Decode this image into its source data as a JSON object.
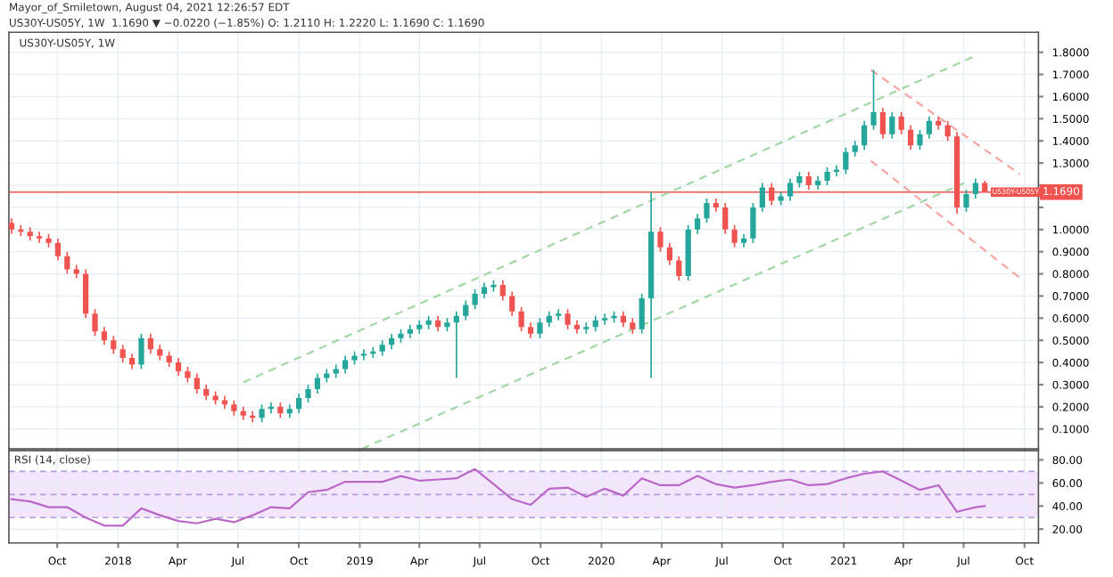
{
  "chart_data": [
    {
      "type": "candlestick",
      "title": "Mayor_of_Smiletown, August 04, 2021 12:26:57 EDT",
      "subtitle": "US30Y-US05Y, 1W  1.1690 ▼ −0.0220 (−1.85%) O: 1.2110 H: 1.2220 L: 1.1690 C: 1.1690",
      "annotations": [
        "US30Y-US05Y, 1W",
        {
          "text": "US30Y-US05Y",
          "x": "2021-08-02",
          "y": 1.169
        }
      ],
      "x": [
        "2017-07-24",
        "2017-08-07",
        "2017-08-21",
        "2017-09-04",
        "2017-09-18",
        "2017-10-02",
        "2017-10-16",
        "2017-10-30",
        "2017-11-13",
        "2017-11-27",
        "2017-12-11",
        "2017-12-25",
        "2018-01-08",
        "2018-01-22",
        "2018-02-05",
        "2018-02-19",
        "2018-03-05",
        "2018-03-19",
        "2018-04-02",
        "2018-04-16",
        "2018-04-30",
        "2018-05-14",
        "2018-05-28",
        "2018-06-11",
        "2018-06-25",
        "2018-07-09",
        "2018-07-23",
        "2018-08-06",
        "2018-08-20",
        "2018-09-03",
        "2018-09-17",
        "2018-10-01",
        "2018-10-15",
        "2018-10-29",
        "2018-11-12",
        "2018-11-26",
        "2018-12-10",
        "2018-12-24",
        "2019-01-07",
        "2019-01-21",
        "2019-02-04",
        "2019-02-18",
        "2019-03-04",
        "2019-03-18",
        "2019-04-01",
        "2019-04-15",
        "2019-04-29",
        "2019-05-13",
        "2019-05-27",
        "2019-06-10",
        "2019-06-24",
        "2019-07-08",
        "2019-07-22",
        "2019-08-05",
        "2019-08-19",
        "2019-09-02",
        "2019-09-16",
        "2019-09-30",
        "2019-10-14",
        "2019-10-28",
        "2019-11-11",
        "2019-11-25",
        "2019-12-09",
        "2019-12-23",
        "2020-01-06",
        "2020-01-20",
        "2020-02-03",
        "2020-02-17",
        "2020-03-02",
        "2020-03-16",
        "2020-03-30",
        "2020-04-13",
        "2020-04-27",
        "2020-05-11",
        "2020-05-25",
        "2020-06-08",
        "2020-06-22",
        "2020-07-06",
        "2020-07-20",
        "2020-08-03",
        "2020-08-17",
        "2020-08-31",
        "2020-09-14",
        "2020-09-28",
        "2020-10-12",
        "2020-10-26",
        "2020-11-09",
        "2020-11-23",
        "2020-12-07",
        "2020-12-21",
        "2021-01-04",
        "2021-01-18",
        "2021-02-01",
        "2021-02-15",
        "2021-03-01",
        "2021-03-15",
        "2021-03-29",
        "2021-04-12",
        "2021-04-26",
        "2021-05-10",
        "2021-05-24",
        "2021-06-07",
        "2021-06-21",
        "2021-07-05",
        "2021-07-19",
        "2021-08-02"
      ],
      "ohlc": [
        [
          1.03,
          1.05,
          0.98,
          1.0
        ],
        [
          1.0,
          1.02,
          0.97,
          0.99
        ],
        [
          0.99,
          1.01,
          0.95,
          0.97
        ],
        [
          0.97,
          0.99,
          0.94,
          0.96
        ],
        [
          0.96,
          0.98,
          0.92,
          0.94
        ],
        [
          0.94,
          0.96,
          0.86,
          0.88
        ],
        [
          0.88,
          0.9,
          0.8,
          0.82
        ],
        [
          0.82,
          0.84,
          0.78,
          0.8
        ],
        [
          0.8,
          0.82,
          0.6,
          0.62
        ],
        [
          0.62,
          0.64,
          0.52,
          0.54
        ],
        [
          0.54,
          0.56,
          0.48,
          0.5
        ],
        [
          0.5,
          0.52,
          0.44,
          0.46
        ],
        [
          0.46,
          0.48,
          0.4,
          0.42
        ],
        [
          0.42,
          0.44,
          0.37,
          0.39
        ],
        [
          0.39,
          0.53,
          0.37,
          0.51
        ],
        [
          0.51,
          0.53,
          0.44,
          0.46
        ],
        [
          0.46,
          0.48,
          0.41,
          0.43
        ],
        [
          0.43,
          0.45,
          0.38,
          0.4
        ],
        [
          0.4,
          0.42,
          0.34,
          0.36
        ],
        [
          0.36,
          0.38,
          0.31,
          0.33
        ],
        [
          0.33,
          0.35,
          0.26,
          0.28
        ],
        [
          0.28,
          0.3,
          0.23,
          0.25
        ],
        [
          0.25,
          0.27,
          0.21,
          0.23
        ],
        [
          0.23,
          0.25,
          0.19,
          0.21
        ],
        [
          0.21,
          0.23,
          0.16,
          0.18
        ],
        [
          0.18,
          0.2,
          0.14,
          0.16
        ],
        [
          0.16,
          0.18,
          0.13,
          0.15
        ],
        [
          0.15,
          0.21,
          0.13,
          0.19
        ],
        [
          0.19,
          0.22,
          0.17,
          0.2
        ],
        [
          0.2,
          0.22,
          0.15,
          0.17
        ],
        [
          0.17,
          0.21,
          0.15,
          0.19
        ],
        [
          0.19,
          0.26,
          0.17,
          0.24
        ],
        [
          0.24,
          0.3,
          0.22,
          0.28
        ],
        [
          0.28,
          0.35,
          0.26,
          0.33
        ],
        [
          0.33,
          0.37,
          0.31,
          0.35
        ],
        [
          0.35,
          0.39,
          0.33,
          0.37
        ],
        [
          0.37,
          0.43,
          0.35,
          0.41
        ],
        [
          0.41,
          0.45,
          0.39,
          0.43
        ],
        [
          0.43,
          0.46,
          0.41,
          0.44
        ],
        [
          0.44,
          0.47,
          0.42,
          0.45
        ],
        [
          0.45,
          0.5,
          0.43,
          0.48
        ],
        [
          0.48,
          0.53,
          0.46,
          0.51
        ],
        [
          0.51,
          0.55,
          0.49,
          0.53
        ],
        [
          0.53,
          0.57,
          0.51,
          0.55
        ],
        [
          0.55,
          0.59,
          0.53,
          0.57
        ],
        [
          0.57,
          0.61,
          0.55,
          0.59
        ],
        [
          0.59,
          0.61,
          0.54,
          0.56
        ],
        [
          0.56,
          0.6,
          0.54,
          0.58
        ],
        [
          0.58,
          0.63,
          0.33,
          0.61
        ],
        [
          0.61,
          0.68,
          0.59,
          0.66
        ],
        [
          0.66,
          0.73,
          0.64,
          0.71
        ],
        [
          0.71,
          0.76,
          0.69,
          0.74
        ],
        [
          0.74,
          0.77,
          0.72,
          0.75
        ],
        [
          0.75,
          0.77,
          0.68,
          0.7
        ],
        [
          0.7,
          0.72,
          0.61,
          0.63
        ],
        [
          0.63,
          0.65,
          0.54,
          0.56
        ],
        [
          0.56,
          0.58,
          0.51,
          0.53
        ],
        [
          0.53,
          0.6,
          0.51,
          0.58
        ],
        [
          0.58,
          0.63,
          0.56,
          0.61
        ],
        [
          0.61,
          0.64,
          0.59,
          0.62
        ],
        [
          0.62,
          0.64,
          0.55,
          0.57
        ],
        [
          0.57,
          0.59,
          0.53,
          0.55
        ],
        [
          0.55,
          0.58,
          0.53,
          0.56
        ],
        [
          0.56,
          0.61,
          0.54,
          0.59
        ],
        [
          0.59,
          0.62,
          0.57,
          0.6
        ],
        [
          0.6,
          0.63,
          0.58,
          0.61
        ],
        [
          0.61,
          0.63,
          0.56,
          0.58
        ],
        [
          0.58,
          0.6,
          0.53,
          0.55
        ],
        [
          0.55,
          0.71,
          0.53,
          0.69
        ],
        [
          0.69,
          1.17,
          0.33,
          0.99
        ],
        [
          0.99,
          1.01,
          0.9,
          0.92
        ],
        [
          0.92,
          0.94,
          0.84,
          0.86
        ],
        [
          0.86,
          0.88,
          0.77,
          0.79
        ],
        [
          0.79,
          1.02,
          0.77,
          1.0
        ],
        [
          1.0,
          1.07,
          0.98,
          1.05
        ],
        [
          1.05,
          1.14,
          1.03,
          1.12
        ],
        [
          1.12,
          1.14,
          1.08,
          1.1
        ],
        [
          1.1,
          1.12,
          0.98,
          1.0
        ],
        [
          1.0,
          1.02,
          0.92,
          0.94
        ],
        [
          0.94,
          0.98,
          0.92,
          0.96
        ],
        [
          0.96,
          1.12,
          0.94,
          1.1
        ],
        [
          1.1,
          1.21,
          1.08,
          1.19
        ],
        [
          1.19,
          1.21,
          1.11,
          1.13
        ],
        [
          1.13,
          1.17,
          1.11,
          1.15
        ],
        [
          1.15,
          1.23,
          1.13,
          1.21
        ],
        [
          1.21,
          1.26,
          1.19,
          1.24
        ],
        [
          1.24,
          1.26,
          1.18,
          1.2
        ],
        [
          1.2,
          1.24,
          1.18,
          1.22
        ],
        [
          1.22,
          1.28,
          1.2,
          1.26
        ],
        [
          1.26,
          1.29,
          1.24,
          1.27
        ],
        [
          1.27,
          1.37,
          1.25,
          1.35
        ],
        [
          1.35,
          1.4,
          1.33,
          1.38
        ],
        [
          1.38,
          1.49,
          1.36,
          1.47
        ],
        [
          1.47,
          1.72,
          1.45,
          1.53
        ],
        [
          1.53,
          1.55,
          1.41,
          1.43
        ],
        [
          1.43,
          1.53,
          1.41,
          1.51
        ],
        [
          1.51,
          1.53,
          1.43,
          1.45
        ],
        [
          1.45,
          1.47,
          1.36,
          1.38
        ],
        [
          1.38,
          1.45,
          1.36,
          1.43
        ],
        [
          1.43,
          1.51,
          1.41,
          1.49
        ],
        [
          1.49,
          1.51,
          1.45,
          1.47
        ],
        [
          1.47,
          1.49,
          1.4,
          1.42
        ],
        [
          1.42,
          1.44,
          1.07,
          1.1
        ],
        [
          1.1,
          1.18,
          1.08,
          1.16
        ],
        [
          1.16,
          1.23,
          1.14,
          1.21
        ],
        [
          1.21,
          1.22,
          1.17,
          1.17
        ]
      ],
      "colors": [
        "#ef5350",
        "#ef5350",
        "#ef5350",
        "#ef5350",
        "#ef5350",
        "#ef5350",
        "#ef5350",
        "#ef5350",
        "#ef5350",
        "#ef5350",
        "#ef5350",
        "#ef5350",
        "#ef5350",
        "#ef5350",
        "#26a69a",
        "#ef5350",
        "#ef5350",
        "#ef5350",
        "#ef5350",
        "#ef5350",
        "#ef5350",
        "#ef5350",
        "#ef5350",
        "#ef5350",
        "#ef5350",
        "#ef5350",
        "#ef5350",
        "#26a69a",
        "#26a69a",
        "#ef5350",
        "#26a69a",
        "#26a69a",
        "#26a69a",
        "#26a69a",
        "#26a69a",
        "#26a69a",
        "#26a69a",
        "#26a69a",
        "#26a69a",
        "#26a69a",
        "#26a69a",
        "#26a69a",
        "#26a69a",
        "#26a69a",
        "#26a69a",
        "#26a69a",
        "#ef5350",
        "#26a69a",
        "#26a69a",
        "#26a69a",
        "#26a69a",
        "#26a69a",
        "#26a69a",
        "#ef5350",
        "#ef5350",
        "#ef5350",
        "#ef5350",
        "#26a69a",
        "#26a69a",
        "#26a69a",
        "#ef5350",
        "#ef5350",
        "#26a69a",
        "#26a69a",
        "#26a69a",
        "#26a69a",
        "#ef5350",
        "#ef5350",
        "#26a69a",
        "#26a69a",
        "#ef5350",
        "#ef5350",
        "#ef5350",
        "#26a69a",
        "#26a69a",
        "#26a69a",
        "#ef5350",
        "#ef5350",
        "#ef5350",
        "#26a69a",
        "#26a69a",
        "#26a69a",
        "#ef5350",
        "#26a69a",
        "#26a69a",
        "#26a69a",
        "#ef5350",
        "#26a69a",
        "#26a69a",
        "#26a69a",
        "#26a69a",
        "#26a69a",
        "#26a69a",
        "#26a69a",
        "#ef5350",
        "#26a69a",
        "#ef5350",
        "#ef5350",
        "#26a69a",
        "#26a69a",
        "#ef5350",
        "#ef5350",
        "#ef5350",
        "#26a69a",
        "#26a69a",
        "#ef5350"
      ],
      "series": [
        {
          "type": "line",
          "color": "#a5d6a7",
          "line_style": "dashed",
          "x": [
            "2018-07-09",
            "2021-07-16"
          ],
          "values": [
            0.31,
            1.78
          ]
        },
        {
          "type": "line",
          "color": "#a5d6a7",
          "line_style": "dashed",
          "x": [
            "2019-01-04",
            "2021-07-02"
          ],
          "values": [
            0.01,
            1.21
          ]
        },
        {
          "type": "line",
          "color": "#f4a6a4",
          "line_style": "dashed",
          "x": [
            "2021-02-11",
            "2021-09-24"
          ],
          "values": [
            1.72,
            1.25
          ]
        },
        {
          "type": "line",
          "color": "#f4a6a4",
          "line_style": "dashed",
          "x": [
            "2021-02-11",
            "2021-09-29"
          ],
          "values": [
            1.31,
            0.77
          ]
        }
      ],
      "ref_lines": [
        {
          "axis": "y",
          "value": 1.169,
          "label": "1.1690",
          "color": "#ef5350"
        }
      ],
      "xlim": [
        "2017-07-20",
        "2021-10-22"
      ],
      "xticks": [
        {
          "value": "2017-10-01",
          "label": null
        },
        {
          "value": "2018-01-01",
          "label": null
        },
        {
          "value": "2018-04-01",
          "label": null
        },
        {
          "value": "2018-07-01",
          "label": null
        },
        {
          "value": "2018-10-01",
          "label": null
        },
        {
          "value": "2019-01-01",
          "label": null
        },
        {
          "value": "2019-04-01",
          "label": null
        },
        {
          "value": "2019-07-01",
          "label": null
        },
        {
          "value": "2019-10-01",
          "label": null
        },
        {
          "value": "2020-01-01",
          "label": null
        },
        {
          "value": "2020-04-01",
          "label": null
        },
        {
          "value": "2020-07-01",
          "label": null
        },
        {
          "value": "2020-10-01",
          "label": null
        },
        {
          "value": "2021-01-01",
          "label": null
        },
        {
          "value": "2021-04-01",
          "label": null
        },
        {
          "value": "2021-07-01",
          "label": null
        },
        {
          "value": "2021-10-01",
          "label": null
        }
      ],
      "ylim": [
        0.01,
        1.89
      ],
      "yticks": [
        {
          "value": 0.1,
          "label": "0.1000"
        },
        {
          "value": 0.2,
          "label": "0.2000"
        },
        {
          "value": 0.3,
          "label": "0.3000"
        },
        {
          "value": 0.4,
          "label": "0.4000"
        },
        {
          "value": 0.5,
          "label": "0.5000"
        },
        {
          "value": 0.6,
          "label": "0.6000"
        },
        {
          "value": 0.7,
          "label": "0.7000"
        },
        {
          "value": 0.8,
          "label": "0.8000"
        },
        {
          "value": 0.9,
          "label": "0.9000"
        },
        {
          "value": 1.0,
          "label": "1.0000"
        },
        {
          "value": 1.1,
          "label": null
        },
        {
          "value": 1.2,
          "label": null
        },
        {
          "value": 1.3,
          "label": "1.3000"
        },
        {
          "value": 1.4,
          "label": "1.4000"
        },
        {
          "value": 1.5,
          "label": "1.5000"
        },
        {
          "value": 1.6,
          "label": "1.6000"
        },
        {
          "value": 1.7,
          "label": "1.7000"
        },
        {
          "value": 1.8,
          "label": "1.8000"
        }
      ],
      "grid": true,
      "tick_labels": "y"
    },
    {
      "type": "line",
      "title": "RSI (14, close)",
      "series": [
        {
          "color": "#ba68c8",
          "x": [
            "2017-07-24",
            "2017-08-21",
            "2017-09-18",
            "2017-10-16",
            "2017-11-13",
            "2017-12-11",
            "2018-01-08",
            "2018-02-05",
            "2018-03-05",
            "2018-04-02",
            "2018-04-30",
            "2018-05-28",
            "2018-06-25",
            "2018-07-23",
            "2018-08-20",
            "2018-09-17",
            "2018-10-15",
            "2018-11-12",
            "2018-12-10",
            "2019-01-07",
            "2019-02-04",
            "2019-03-04",
            "2019-04-01",
            "2019-04-29",
            "2019-05-27",
            "2019-06-24",
            "2019-07-22",
            "2019-08-19",
            "2019-09-16",
            "2019-10-14",
            "2019-11-11",
            "2019-12-09",
            "2020-01-06",
            "2020-02-03",
            "2020-03-02",
            "2020-03-30",
            "2020-04-27",
            "2020-05-25",
            "2020-06-22",
            "2020-07-20",
            "2020-08-17",
            "2020-09-14",
            "2020-10-12",
            "2020-11-09",
            "2020-12-07",
            "2021-01-04",
            "2021-02-01",
            "2021-03-01",
            "2021-03-29",
            "2021-04-26",
            "2021-05-24",
            "2021-06-21",
            "2021-07-19",
            "2021-08-02"
          ],
          "values": [
            46,
            44,
            39,
            39,
            30,
            23,
            23,
            38,
            32,
            27,
            25,
            29,
            26,
            32,
            39,
            38,
            52,
            54,
            61,
            61,
            61,
            66,
            62,
            63,
            64,
            72,
            59,
            46,
            41,
            55,
            56,
            48,
            55,
            49,
            64,
            58,
            58,
            66,
            59,
            56,
            58,
            61,
            63,
            58,
            59,
            64,
            68,
            70,
            62,
            54,
            58,
            35,
            39,
            40
          ]
        }
      ],
      "bands": [
        {
          "axis": "y",
          "from": 30,
          "to": 70,
          "color": "#f3e5fb"
        }
      ],
      "ref_lines": [
        {
          "axis": "y",
          "value": 30,
          "color": "#b39ddb",
          "line_style": "dashed"
        },
        {
          "axis": "y",
          "value": 50,
          "color": "#b39ddb",
          "line_style": "dashed"
        },
        {
          "axis": "y",
          "value": 70,
          "color": "#b39ddb",
          "line_style": "dashed"
        }
      ],
      "xlim": [
        "2017-07-20",
        "2021-10-22"
      ],
      "xticks": [
        {
          "value": "2017-10-01",
          "label": "Oct"
        },
        {
          "value": "2018-01-01",
          "label": "2018"
        },
        {
          "value": "2018-04-01",
          "label": "Apr"
        },
        {
          "value": "2018-07-01",
          "label": "Jul"
        },
        {
          "value": "2018-10-01",
          "label": "Oct"
        },
        {
          "value": "2019-01-01",
          "label": "2019"
        },
        {
          "value": "2019-04-01",
          "label": "Apr"
        },
        {
          "value": "2019-07-01",
          "label": "Jul"
        },
        {
          "value": "2019-10-01",
          "label": "Oct"
        },
        {
          "value": "2020-01-01",
          "label": "2020"
        },
        {
          "value": "2020-04-01",
          "label": "Apr"
        },
        {
          "value": "2020-07-01",
          "label": "Jul"
        },
        {
          "value": "2020-10-01",
          "label": "Oct"
        },
        {
          "value": "2021-01-01",
          "label": "2021"
        },
        {
          "value": "2021-04-01",
          "label": "Apr"
        },
        {
          "value": "2021-07-01",
          "label": "Jul"
        },
        {
          "value": "2021-10-01",
          "label": "Oct"
        }
      ],
      "ylim": [
        8,
        88
      ],
      "yticks": [
        {
          "value": 20,
          "label": "20.00"
        },
        {
          "value": 40,
          "label": "40.00"
        },
        {
          "value": 60,
          "label": "60.00"
        },
        {
          "value": 80,
          "label": "80.00"
        }
      ],
      "grid": true
    }
  ]
}
